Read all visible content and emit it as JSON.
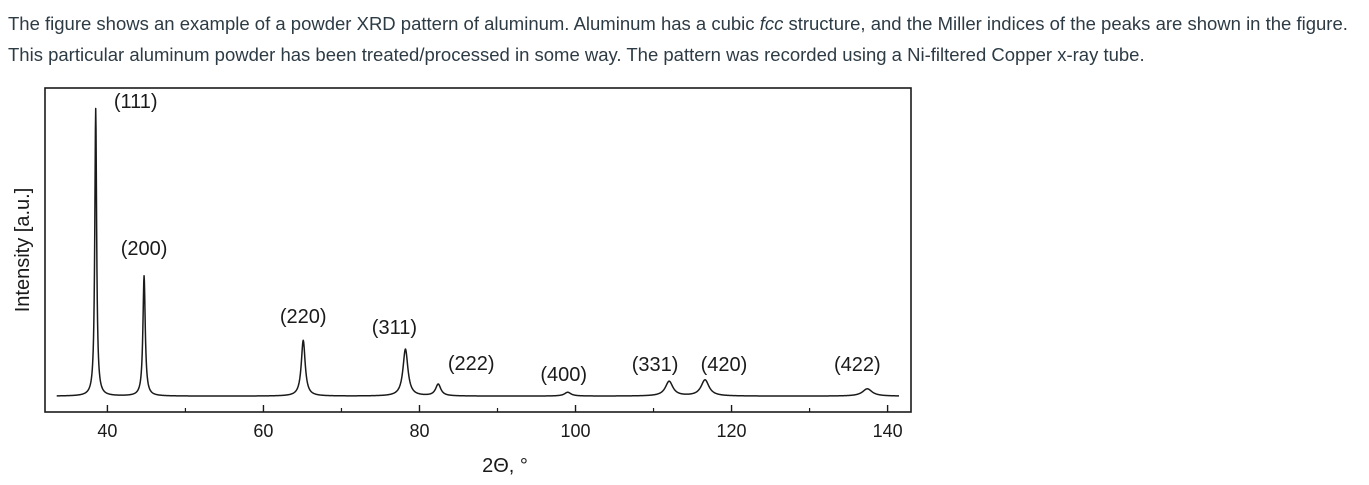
{
  "intro": {
    "part1": "The figure shows an example of a powder XRD pattern of aluminum.  Aluminum has a cubic ",
    "emphasis": "fcc",
    "part2": " structure, and the Miller indices of the peaks are shown in the figure.  This particular aluminum powder has been treated/processed in some way.  The pattern was recorded using a Ni-filtered Copper x-ray tube."
  },
  "chart_data": {
    "type": "line",
    "xlabel": "2Θ, °",
    "ylabel": "Intensity [a.u.]",
    "xlim": [
      32,
      143
    ],
    "ylim": [
      0,
      105
    ],
    "xticks": [
      40,
      60,
      80,
      100,
      120,
      140
    ],
    "grid": false,
    "legend": "none",
    "baseline": 2,
    "peaks": [
      {
        "label": "(111)",
        "x": 38.5,
        "y": 100
      },
      {
        "label": "(200)",
        "x": 44.7,
        "y": 43
      },
      {
        "label": "(220)",
        "x": 65.1,
        "y": 21
      },
      {
        "label": "(311)",
        "x": 78.2,
        "y": 18
      },
      {
        "label": "(222)",
        "x": 82.4,
        "y": 6
      },
      {
        "label": "(400)",
        "x": 99.0,
        "y": 3.3
      },
      {
        "label": "(331)",
        "x": 112.0,
        "y": 7
      },
      {
        "label": "(420)",
        "x": 116.6,
        "y": 7.5
      },
      {
        "label": "(422)",
        "x": 137.4,
        "y": 4.5
      }
    ]
  }
}
